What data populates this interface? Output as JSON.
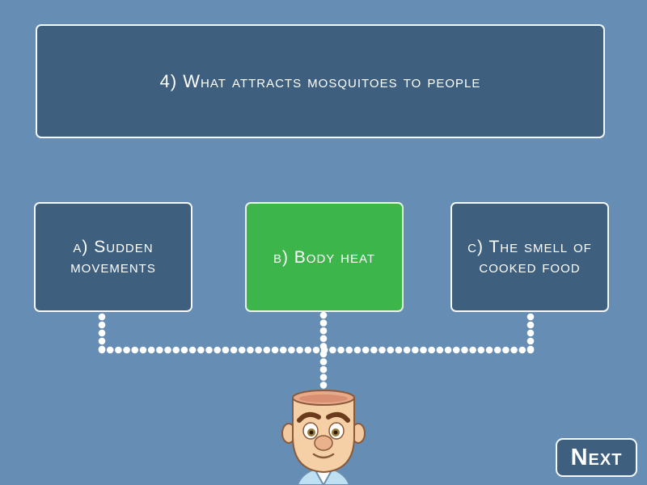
{
  "question": {
    "text": "4) What attracts mosquitoes to people"
  },
  "answers": [
    {
      "text": "a)  Sudden movements"
    },
    {
      "text": "b)  Body heat"
    },
    {
      "text": "c)  The smell of cooked food"
    }
  ],
  "next_button": {
    "label": "Next"
  },
  "colors": {
    "background": "#668db4",
    "box": "#3e5f7e",
    "selected": "#3cb54a",
    "border": "#f4f8fb"
  }
}
